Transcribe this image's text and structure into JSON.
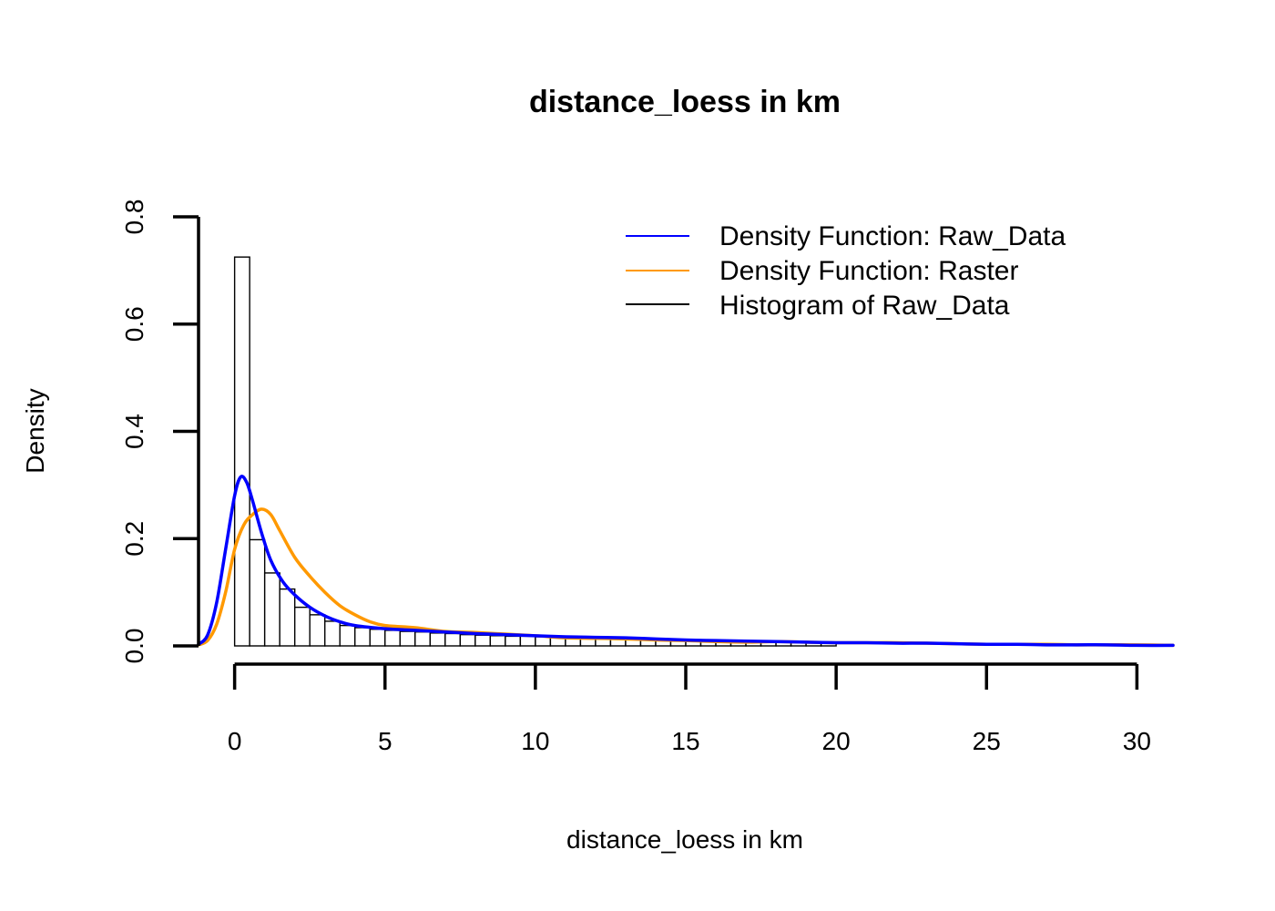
{
  "chart_data": {
    "type": "histogram",
    "title": "distance_loess in km",
    "xlabel": "distance_loess in km",
    "ylabel": "Density",
    "xlim": [
      -1.2,
      31.2
    ],
    "ylim": [
      0,
      0.8
    ],
    "x_ticks": [
      0,
      5,
      10,
      15,
      20,
      25,
      30
    ],
    "x_tick_labels": [
      "0",
      "5",
      "10",
      "15",
      "20",
      "25",
      "30"
    ],
    "y_ticks": [
      0,
      0.2,
      0.4,
      0.6,
      0.8
    ],
    "y_tick_labels": [
      "0.0",
      "0.2",
      "0.4",
      "0.6",
      "0.8"
    ],
    "grid": false,
    "legend_position": "top-right",
    "histogram": {
      "name": "Histogram of Raw_Data",
      "color": "#000000",
      "bin_width": 0.5,
      "bin_start": 0,
      "densities": [
        0.725,
        0.198,
        0.136,
        0.106,
        0.072,
        0.058,
        0.046,
        0.038,
        0.034,
        0.031,
        0.029,
        0.027,
        0.026,
        0.024,
        0.023,
        0.021,
        0.02,
        0.019,
        0.018,
        0.018,
        0.017,
        0.016,
        0.015,
        0.014,
        0.014,
        0.013,
        0.013,
        0.012,
        0.012,
        0.011,
        0.011,
        0.01,
        0.01,
        0.009,
        0.009,
        0.009,
        0.008,
        0.008,
        0.007,
        0.007
      ]
    },
    "series": [
      {
        "name": "Density Function: Raw_Data",
        "color": "#0000ff",
        "x": [
          -1.2,
          -0.9,
          -0.6,
          -0.3,
          0.0,
          0.2,
          0.4,
          0.6,
          0.9,
          1.2,
          1.6,
          2.0,
          2.5,
          3.0,
          3.5,
          4.0,
          5.0,
          6.0,
          7.0,
          8.0,
          9.0,
          10.0,
          11.0,
          12.0,
          13.0,
          14.0,
          15.0,
          16.0,
          17.0,
          18.0,
          19.0,
          20.0,
          21.0,
          22.0,
          23.0,
          24.0,
          25.0,
          26.0,
          27.0,
          28.0,
          29.0,
          30.0,
          31.2
        ],
        "y": [
          0.003,
          0.02,
          0.08,
          0.18,
          0.28,
          0.315,
          0.305,
          0.27,
          0.21,
          0.16,
          0.12,
          0.095,
          0.072,
          0.056,
          0.045,
          0.038,
          0.032,
          0.029,
          0.026,
          0.023,
          0.021,
          0.019,
          0.017,
          0.016,
          0.015,
          0.013,
          0.011,
          0.01,
          0.009,
          0.008,
          0.007,
          0.006,
          0.006,
          0.005,
          0.005,
          0.004,
          0.003,
          0.003,
          0.002,
          0.002,
          0.002,
          0.001,
          0.001
        ]
      },
      {
        "name": "Density Function: Raster",
        "color": "#ff9900",
        "x": [
          -1.2,
          -0.9,
          -0.6,
          -0.3,
          0.0,
          0.3,
          0.6,
          0.9,
          1.2,
          1.5,
          2.0,
          2.5,
          3.0,
          3.5,
          4.0,
          4.5,
          5.0,
          6.0,
          7.0,
          8.0,
          9.0,
          10.0,
          11.0,
          12.0,
          13.0,
          14.0,
          15.0,
          16.0,
          17.0,
          18.0,
          19.0,
          20.0,
          21.0,
          22.0,
          23.0,
          24.0,
          25.0,
          26.0,
          27.0,
          28.0,
          29.0,
          30.0,
          31.2
        ],
        "y": [
          0.002,
          0.01,
          0.04,
          0.1,
          0.18,
          0.225,
          0.245,
          0.255,
          0.245,
          0.215,
          0.165,
          0.13,
          0.1,
          0.075,
          0.058,
          0.045,
          0.038,
          0.034,
          0.027,
          0.025,
          0.022,
          0.019,
          0.015,
          0.014,
          0.013,
          0.011,
          0.01,
          0.008,
          0.007,
          0.008,
          0.007,
          0.006,
          0.006,
          0.006,
          0.005,
          0.004,
          0.003,
          0.003,
          0.003,
          0.002,
          0.002,
          0.002,
          0.001
        ]
      }
    ]
  }
}
